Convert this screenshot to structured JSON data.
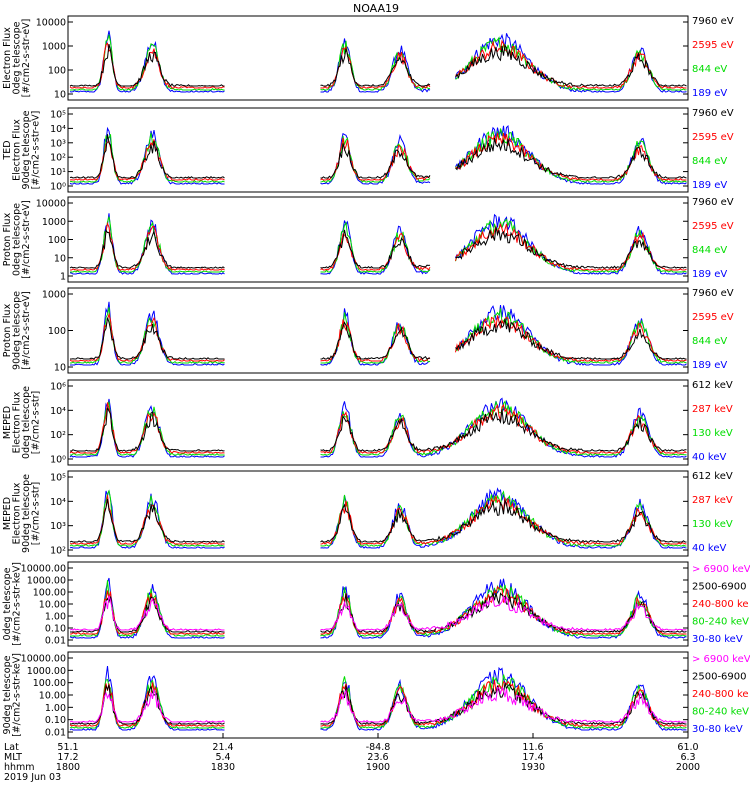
{
  "title": "NOAA19",
  "colors": {
    "black": "#000000",
    "red": "#ff0000",
    "green": "#00dd00",
    "blue": "#0000ff",
    "magenta": "#ff00ff"
  },
  "chart_data": [
    {
      "type": "line",
      "ylabel": [
        "Electron Flux",
        "0deg telescope",
        "[#/cm2-s-str-eV]"
      ],
      "yticks": [
        "10000",
        "1000",
        "100",
        "10"
      ],
      "ylim": [
        3,
        10000
      ],
      "scale": "log",
      "legend": [
        {
          "label": "7960 eV",
          "color": "#000000"
        },
        {
          "label": "2595 eV",
          "color": "#ff0000"
        },
        {
          "label": "844 eV",
          "color": "#00dd00"
        },
        {
          "label": "189 eV",
          "color": "#0000ff"
        }
      ]
    },
    {
      "type": "line",
      "ylabel": [
        "TED",
        "Electron Flux",
        "90deg telescope",
        "[#/cm2-s-str-eV]"
      ],
      "yticks": [
        "10⁵",
        "10⁴",
        "10³",
        "10²",
        "10¹",
        "10⁰"
      ],
      "ylim": [
        1,
        100000
      ],
      "scale": "log",
      "legend": [
        {
          "label": "7960 eV",
          "color": "#000000"
        },
        {
          "label": "2595 eV",
          "color": "#ff0000"
        },
        {
          "label": "844 eV",
          "color": "#00dd00"
        },
        {
          "label": "189 eV",
          "color": "#0000ff"
        }
      ]
    },
    {
      "type": "line",
      "ylabel": [
        "Proton Flux",
        "0deg telescope",
        "[#/cm2-s-str-eV]"
      ],
      "yticks": [
        "10000",
        "1000",
        "100",
        "10",
        "1"
      ],
      "ylim": [
        1,
        10000
      ],
      "scale": "log",
      "legend": [
        {
          "label": "7960 eV",
          "color": "#000000"
        },
        {
          "label": "2595 eV",
          "color": "#ff0000"
        },
        {
          "label": "844 eV",
          "color": "#00dd00"
        },
        {
          "label": "189 eV",
          "color": "#0000ff"
        }
      ]
    },
    {
      "type": "line",
      "ylabel": [
        "Proton Flux",
        "90deg telescope",
        "[#/cm2-s-str-eV]"
      ],
      "yticks": [
        "1000",
        "100",
        "10"
      ],
      "ylim": [
        1,
        10000
      ],
      "scale": "log",
      "legend": [
        {
          "label": "7960 eV",
          "color": "#000000"
        },
        {
          "label": "2595 eV",
          "color": "#ff0000"
        },
        {
          "label": "844 eV",
          "color": "#00dd00"
        },
        {
          "label": "189 eV",
          "color": "#0000ff"
        }
      ]
    },
    {
      "type": "line",
      "ylabel": [
        "MEPED",
        "Electron Flux",
        "0deg telescope",
        "[#/cm2-s-str]"
      ],
      "yticks": [
        "10⁶",
        "10⁴",
        "10²",
        "10⁰"
      ],
      "ylim": [
        1,
        1000000
      ],
      "scale": "log",
      "legend": [
        {
          "label": "612 keV",
          "color": "#000000"
        },
        {
          "label": "287 keV",
          "color": "#ff0000"
        },
        {
          "label": "130 keV",
          "color": "#00dd00"
        },
        {
          "label": "40 keV",
          "color": "#0000ff"
        }
      ]
    },
    {
      "type": "line",
      "ylabel": [
        "MEPED",
        "Electron Flux",
        "90deg telescope",
        "[#/cm2-s-str]"
      ],
      "yticks": [
        "10⁵",
        "10⁴",
        "10³",
        "10²"
      ],
      "ylim": [
        50,
        100000
      ],
      "scale": "log",
      "legend": [
        {
          "label": "612 keV",
          "color": "#000000"
        },
        {
          "label": "287 keV",
          "color": "#ff0000"
        },
        {
          "label": "130 keV",
          "color": "#00dd00"
        },
        {
          "label": "40 keV",
          "color": "#0000ff"
        }
      ]
    },
    {
      "type": "line",
      "ylabel": [
        "0deg telescope",
        "[#/cm2-s-str-keV]"
      ],
      "yticks": [
        "10000.00",
        "1000.00",
        "100.00",
        "10.00",
        "1.00",
        "0.10",
        "0.01"
      ],
      "ylim": [
        0.01,
        10000
      ],
      "scale": "log",
      "legend": [
        {
          "label": "> 6900 keV",
          "color": "#ff00ff"
        },
        {
          "label": "2500-6900",
          "color": "#000000"
        },
        {
          "label": "240-800 ke",
          "color": "#ff0000"
        },
        {
          "label": "80-240 keV",
          "color": "#00dd00"
        },
        {
          "label": "30-80 keV",
          "color": "#0000ff"
        }
      ]
    },
    {
      "type": "line",
      "ylabel": [
        "90deg telescope",
        "[#/cm2-s-str-keV]"
      ],
      "yticks": [
        "10000.00",
        "1000.00",
        "100.00",
        "10.00",
        "1.00",
        "0.10",
        "0.01"
      ],
      "ylim": [
        0.01,
        10000
      ],
      "scale": "log",
      "legend": [
        {
          "label": "> 6900 keV",
          "color": "#ff00ff"
        },
        {
          "label": "2500-6900",
          "color": "#000000"
        },
        {
          "label": "240-800 ke",
          "color": "#ff0000"
        },
        {
          "label": "80-240 keV",
          "color": "#00dd00"
        },
        {
          "label": "30-80 keV",
          "color": "#0000ff"
        }
      ]
    }
  ],
  "xaxis": {
    "row_labels": [
      "Lat",
      "MLT",
      "hhmm"
    ],
    "date": "2019 Jun 03",
    "ticks": [
      {
        "lat": "51.1",
        "mlt": "17.2",
        "hhmm": "1800"
      },
      {
        "lat": "21.4",
        "mlt": "5.4",
        "hhmm": "1830"
      },
      {
        "lat": "-84.8",
        "mlt": "23.6",
        "hhmm": "1900"
      },
      {
        "lat": "11.6",
        "mlt": "17.4",
        "hhmm": "1930"
      },
      {
        "lat": "61.0",
        "mlt": "6.3",
        "hhmm": "2000"
      }
    ]
  }
}
